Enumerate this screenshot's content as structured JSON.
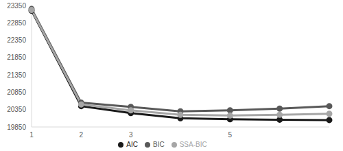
{
  "chart_data": {
    "type": "line",
    "categories": [
      "1",
      "2",
      "3",
      null,
      "5",
      null,
      null
    ],
    "series": [
      {
        "name": "AIC",
        "color": "#1a1a1a",
        "values": [
          23200,
          20450,
          20250,
          20100,
          20070,
          20060,
          20050
        ]
      },
      {
        "name": "BIC",
        "color": "#595959",
        "values": [
          23250,
          20550,
          20430,
          20300,
          20330,
          20380,
          20450
        ]
      },
      {
        "name": "SSA-BIC",
        "color": "#a6a6a6",
        "values": [
          23220,
          20500,
          20330,
          20200,
          20180,
          20200,
          20230
        ]
      }
    ],
    "ylim": [
      19850,
      23350
    ],
    "yticks": [
      19850,
      20350,
      20850,
      21350,
      21850,
      22350,
      22850,
      23350
    ],
    "grid": false,
    "legend": "bottom",
    "marker": "circle"
  }
}
